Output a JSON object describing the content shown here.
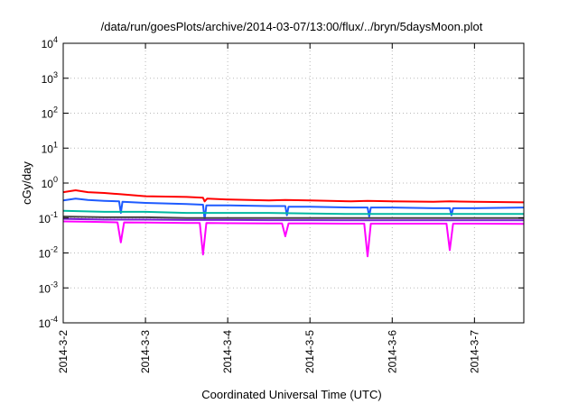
{
  "chart_data": {
    "type": "line",
    "title": "/data/run/goesPlots/archive/2014-03-07/13:00/flux/../bryn/5daysMoon.plot",
    "xlabel": "Coordinated Universal Time (UTC)",
    "ylabel": "cGy/day",
    "yscale": "log",
    "ylim": [
      0.0001,
      10000
    ],
    "xlim_days": [
      0,
      5.6
    ],
    "grid": true,
    "legend": "none",
    "x_ticks": [
      {
        "day": 0,
        "label": "2014-3-2"
      },
      {
        "day": 1,
        "label": "2014-3-3"
      },
      {
        "day": 2,
        "label": "2014-3-4"
      },
      {
        "day": 3,
        "label": "2014-3-5"
      },
      {
        "day": 4,
        "label": "2014-3-6"
      },
      {
        "day": 5,
        "label": "2014-3-7"
      }
    ],
    "y_ticks": [
      {
        "value": 0.0001,
        "base": "10",
        "exp": "-4"
      },
      {
        "value": 0.001,
        "base": "10",
        "exp": "-3"
      },
      {
        "value": 0.01,
        "base": "10",
        "exp": "-2"
      },
      {
        "value": 0.1,
        "base": "10",
        "exp": "-1"
      },
      {
        "value": 1,
        "base": "10",
        "exp": "0"
      },
      {
        "value": 10,
        "base": "10",
        "exp": "1"
      },
      {
        "value": 100,
        "base": "10",
        "exp": "2"
      },
      {
        "value": 1000,
        "base": "10",
        "exp": "3"
      },
      {
        "value": 10000,
        "base": "10",
        "exp": "4"
      }
    ],
    "series": [
      {
        "color": "#ff0000",
        "points": [
          [
            0,
            0.55
          ],
          [
            0.15,
            0.62
          ],
          [
            0.3,
            0.55
          ],
          [
            0.5,
            0.52
          ],
          [
            0.7,
            0.48
          ],
          [
            1.0,
            0.42
          ],
          [
            1.5,
            0.4
          ],
          [
            1.7,
            0.38
          ],
          [
            1.72,
            0.3
          ],
          [
            1.75,
            0.36
          ],
          [
            2.0,
            0.34
          ],
          [
            2.5,
            0.32
          ],
          [
            2.7,
            0.33
          ],
          [
            3.0,
            0.32
          ],
          [
            3.5,
            0.3
          ],
          [
            3.7,
            0.31
          ],
          [
            4.0,
            0.3
          ],
          [
            4.5,
            0.29
          ],
          [
            4.7,
            0.3
          ],
          [
            5.0,
            0.29
          ],
          [
            5.6,
            0.28
          ]
        ]
      },
      {
        "color": "#1e5bff",
        "points": [
          [
            0,
            0.32
          ],
          [
            0.15,
            0.36
          ],
          [
            0.3,
            0.33
          ],
          [
            0.5,
            0.31
          ],
          [
            0.68,
            0.3
          ],
          [
            0.7,
            0.14
          ],
          [
            0.72,
            0.29
          ],
          [
            1.0,
            0.27
          ],
          [
            1.5,
            0.25
          ],
          [
            1.7,
            0.24
          ],
          [
            1.72,
            0.09
          ],
          [
            1.74,
            0.23
          ],
          [
            2.0,
            0.23
          ],
          [
            2.5,
            0.22
          ],
          [
            2.7,
            0.22
          ],
          [
            2.72,
            0.12
          ],
          [
            2.74,
            0.21
          ],
          [
            3.0,
            0.21
          ],
          [
            3.5,
            0.2
          ],
          [
            3.7,
            0.2
          ],
          [
            3.72,
            0.11
          ],
          [
            3.74,
            0.2
          ],
          [
            4.0,
            0.2
          ],
          [
            4.5,
            0.19
          ],
          [
            4.7,
            0.19
          ],
          [
            4.72,
            0.12
          ],
          [
            4.74,
            0.19
          ],
          [
            5.0,
            0.19
          ],
          [
            5.6,
            0.2
          ]
        ]
      },
      {
        "color": "#00b8a0",
        "points": [
          [
            0,
            0.16
          ],
          [
            0.5,
            0.15
          ],
          [
            1.0,
            0.15
          ],
          [
            1.5,
            0.14
          ],
          [
            2.0,
            0.14
          ],
          [
            2.5,
            0.14
          ],
          [
            3.0,
            0.135
          ],
          [
            3.5,
            0.13
          ],
          [
            4.0,
            0.13
          ],
          [
            4.5,
            0.13
          ],
          [
            5.0,
            0.13
          ],
          [
            5.6,
            0.13
          ]
        ]
      },
      {
        "color": "#444444",
        "points": [
          [
            0,
            0.11
          ],
          [
            0.5,
            0.105
          ],
          [
            1.0,
            0.105
          ],
          [
            1.5,
            0.1
          ],
          [
            2.0,
            0.1
          ],
          [
            2.5,
            0.1
          ],
          [
            3.0,
            0.1
          ],
          [
            3.5,
            0.1
          ],
          [
            4.0,
            0.1
          ],
          [
            4.5,
            0.1
          ],
          [
            5.0,
            0.1
          ],
          [
            5.6,
            0.1
          ]
        ]
      },
      {
        "color": "#7a1fd6",
        "points": [
          [
            0,
            0.095
          ],
          [
            0.5,
            0.09
          ],
          [
            1.0,
            0.09
          ],
          [
            1.5,
            0.088
          ],
          [
            2.0,
            0.088
          ],
          [
            2.5,
            0.087
          ],
          [
            3.0,
            0.087
          ],
          [
            3.5,
            0.086
          ],
          [
            4.0,
            0.086
          ],
          [
            4.5,
            0.086
          ],
          [
            5.0,
            0.086
          ],
          [
            5.6,
            0.086
          ]
        ]
      },
      {
        "color": "#ff00ff",
        "points": [
          [
            0,
            0.08
          ],
          [
            0.3,
            0.078
          ],
          [
            0.66,
            0.075
          ],
          [
            0.7,
            0.02
          ],
          [
            0.74,
            0.075
          ],
          [
            1.0,
            0.074
          ],
          [
            1.5,
            0.072
          ],
          [
            1.66,
            0.072
          ],
          [
            1.7,
            0.009
          ],
          [
            1.74,
            0.072
          ],
          [
            2.0,
            0.071
          ],
          [
            2.5,
            0.07
          ],
          [
            2.66,
            0.07
          ],
          [
            2.7,
            0.03
          ],
          [
            2.74,
            0.07
          ],
          [
            3.0,
            0.07
          ],
          [
            3.5,
            0.069
          ],
          [
            3.66,
            0.069
          ],
          [
            3.7,
            0.008
          ],
          [
            3.74,
            0.069
          ],
          [
            4.0,
            0.069
          ],
          [
            4.5,
            0.069
          ],
          [
            4.66,
            0.069
          ],
          [
            4.7,
            0.012
          ],
          [
            4.74,
            0.069
          ],
          [
            5.0,
            0.069
          ],
          [
            5.6,
            0.068
          ]
        ]
      }
    ]
  }
}
